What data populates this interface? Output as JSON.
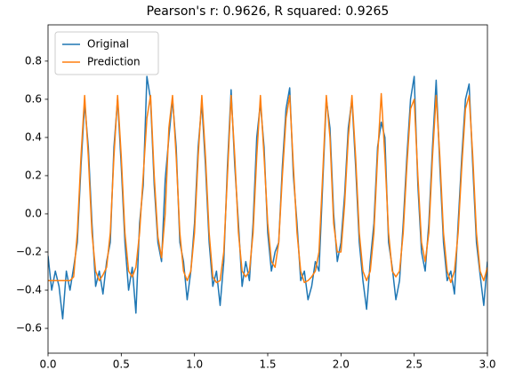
{
  "chart_data": {
    "type": "line",
    "title": "Pearson's r: 0.9626, R squared: 0.9265",
    "x": [
      0,
      0.025,
      0.05,
      0.075,
      0.1,
      0.125,
      0.15,
      0.175,
      0.2,
      0.225,
      0.25,
      0.275,
      0.3,
      0.325,
      0.35,
      0.375,
      0.4,
      0.425,
      0.45,
      0.475,
      0.5,
      0.525,
      0.55,
      0.575,
      0.6,
      0.625,
      0.65,
      0.675,
      0.7,
      0.725,
      0.75,
      0.775,
      0.8,
      0.825,
      0.85,
      0.875,
      0.9,
      0.925,
      0.95,
      0.975,
      1,
      1.025,
      1.05,
      1.075,
      1.1,
      1.125,
      1.15,
      1.175,
      1.2,
      1.225,
      1.25,
      1.275,
      1.3,
      1.325,
      1.35,
      1.375,
      1.4,
      1.425,
      1.45,
      1.475,
      1.5,
      1.525,
      1.55,
      1.575,
      1.6,
      1.625,
      1.65,
      1.675,
      1.7,
      1.725,
      1.75,
      1.775,
      1.8,
      1.825,
      1.85,
      1.875,
      1.9,
      1.925,
      1.95,
      1.975,
      2,
      2.025,
      2.05,
      2.075,
      2.1,
      2.125,
      2.15,
      2.175,
      2.2,
      2.225,
      2.25,
      2.275,
      2.3,
      2.325,
      2.35,
      2.375,
      2.4,
      2.425,
      2.45,
      2.475,
      2.5,
      2.525,
      2.55,
      2.575,
      2.6,
      2.625,
      2.65,
      2.675,
      2.7,
      2.725,
      2.75,
      2.775,
      2.8,
      2.825,
      2.85,
      2.875,
      2.9,
      2.925,
      2.95,
      2.975,
      3
    ],
    "series": [
      {
        "name": "Original",
        "color": "#1f77b4",
        "values": [
          -0.22,
          -0.4,
          -0.3,
          -0.38,
          -0.55,
          -0.3,
          -0.4,
          -0.28,
          -0.15,
          0.25,
          0.58,
          0.35,
          -0.05,
          -0.38,
          -0.3,
          -0.42,
          -0.25,
          -0.15,
          0.35,
          0.6,
          0.25,
          -0.15,
          -0.4,
          -0.28,
          -0.52,
          -0.05,
          0.15,
          0.72,
          0.6,
          0.15,
          -0.15,
          -0.25,
          0.18,
          0.4,
          0.6,
          0.35,
          -0.15,
          -0.25,
          -0.45,
          -0.3,
          -0.05,
          0.35,
          0.58,
          0.25,
          -0.15,
          -0.38,
          -0.3,
          -0.48,
          -0.25,
          0.25,
          0.65,
          0.25,
          -0.05,
          -0.38,
          -0.25,
          -0.35,
          -0.05,
          0.4,
          0.58,
          0.35,
          -0.1,
          -0.3,
          -0.2,
          -0.15,
          0.25,
          0.55,
          0.66,
          0.2,
          -0.05,
          -0.35,
          -0.3,
          -0.45,
          -0.38,
          -0.25,
          -0.3,
          0.15,
          0.6,
          0.45,
          0.0,
          -0.25,
          -0.15,
          0.1,
          0.45,
          0.6,
          0.25,
          -0.15,
          -0.35,
          -0.5,
          -0.25,
          -0.05,
          0.35,
          0.48,
          0.4,
          -0.15,
          -0.28,
          -0.45,
          -0.35,
          -0.05,
          0.3,
          0.6,
          0.72,
          0.15,
          -0.2,
          -0.3,
          -0.05,
          0.35,
          0.7,
          0.25,
          -0.15,
          -0.35,
          -0.3,
          -0.42,
          -0.05,
          0.3,
          0.6,
          0.68,
          0.25,
          -0.15,
          -0.32,
          -0.48,
          -0.25
        ]
      },
      {
        "name": "Prediction",
        "color": "#ff7f0e",
        "values": [
          -0.35,
          -0.35,
          -0.35,
          -0.35,
          -0.35,
          -0.35,
          -0.35,
          -0.33,
          -0.1,
          0.3,
          0.62,
          0.3,
          -0.1,
          -0.3,
          -0.35,
          -0.32,
          -0.28,
          -0.1,
          0.3,
          0.62,
          0.3,
          -0.1,
          -0.3,
          -0.33,
          -0.28,
          -0.1,
          0.2,
          0.5,
          0.62,
          0.2,
          -0.12,
          -0.23,
          0.0,
          0.45,
          0.62,
          0.3,
          -0.1,
          -0.3,
          -0.35,
          -0.3,
          -0.1,
          0.3,
          0.62,
          0.3,
          -0.1,
          -0.33,
          -0.36,
          -0.35,
          -0.2,
          0.2,
          0.62,
          0.3,
          -0.1,
          -0.3,
          -0.33,
          -0.3,
          -0.1,
          0.3,
          0.62,
          0.3,
          -0.05,
          -0.25,
          -0.28,
          -0.15,
          0.2,
          0.5,
          0.62,
          0.25,
          -0.1,
          -0.3,
          -0.36,
          -0.35,
          -0.33,
          -0.3,
          -0.2,
          0.2,
          0.62,
          0.4,
          -0.05,
          -0.2,
          -0.2,
          0.05,
          0.4,
          0.62,
          0.3,
          -0.1,
          -0.3,
          -0.35,
          -0.3,
          -0.1,
          0.3,
          0.63,
          0.3,
          -0.1,
          -0.3,
          -0.33,
          -0.3,
          -0.1,
          0.25,
          0.55,
          0.6,
          0.2,
          -0.15,
          -0.25,
          -0.1,
          0.3,
          0.62,
          0.3,
          -0.1,
          -0.3,
          -0.36,
          -0.3,
          -0.1,
          0.25,
          0.55,
          0.62,
          0.3,
          -0.1,
          -0.3,
          -0.35,
          -0.28
        ]
      }
    ],
    "xlim": [
      0,
      3
    ],
    "ylim": [
      -0.73,
      0.99
    ],
    "xticks": [
      {
        "value": 0,
        "label": "0.0"
      },
      0.5,
      {
        "value": 1,
        "label": "1.0"
      },
      1.5,
      {
        "value": 2,
        "label": "2.0"
      },
      2.5,
      {
        "value": 3,
        "label": "3.0"
      }
    ],
    "yticks": [
      {
        "value": -0.6,
        "label": "−0.6"
      },
      {
        "value": -0.4,
        "label": "−0.4"
      },
      {
        "value": -0.2,
        "label": "−0.2"
      },
      {
        "value": 0,
        "label": "0.0"
      },
      0.2,
      0.4,
      0.6,
      0.8
    ],
    "legend": "upper left",
    "grid": false
  }
}
